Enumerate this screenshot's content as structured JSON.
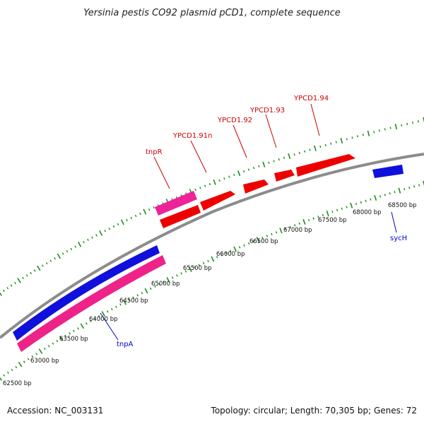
{
  "header": {
    "title": "Yersinia pestis CO92 plasmid pCD1, complete sequence"
  },
  "footer": {
    "accession": "Accession: NC_003131",
    "summary": "Topology: circular; Length: 70,305 bp; Genes: 72"
  },
  "colors": {
    "backbone": "#8c8c8c",
    "tick_major": "#1e8c1e",
    "tick_minor": "#1e8c1e",
    "forward_label": "#cc0000",
    "reverse_label": "#0000cc",
    "gene_red": "#ee0000",
    "gene_pink": "#ee2288",
    "gene_blue": "#1010dd",
    "gene_magenta": "#ee2299"
  },
  "ruler": {
    "labels": [
      {
        "text": "62500 bp"
      },
      {
        "text": "63000 bp"
      },
      {
        "text": "63500 bp"
      },
      {
        "text": "64000 bp"
      },
      {
        "text": "64500 bp"
      },
      {
        "text": "65000 bp"
      },
      {
        "text": "65500 bp"
      },
      {
        "text": "66000 bp"
      },
      {
        "text": "66500 bp"
      },
      {
        "text": "67000 bp"
      },
      {
        "text": "67500 bp"
      },
      {
        "text": "68000 bp"
      },
      {
        "text": "68500 bp"
      }
    ]
  },
  "genes": [
    {
      "label": "tnpR",
      "strand": "forward",
      "color": "gene_magenta"
    },
    {
      "label": "YPCD1.91n",
      "strand": "forward",
      "color": "gene_red"
    },
    {
      "label": "YPCD1.92",
      "strand": "forward",
      "color": "gene_red"
    },
    {
      "label": "YPCD1.93",
      "strand": "forward",
      "color": "gene_red"
    },
    {
      "label": "YPCD1.94",
      "strand": "forward",
      "color": "gene_red"
    },
    {
      "label": "tnpA",
      "strand": "reverse",
      "color": "gene_pink"
    },
    {
      "label": "sycH",
      "strand": "reverse",
      "color": "gene_blue"
    }
  ]
}
